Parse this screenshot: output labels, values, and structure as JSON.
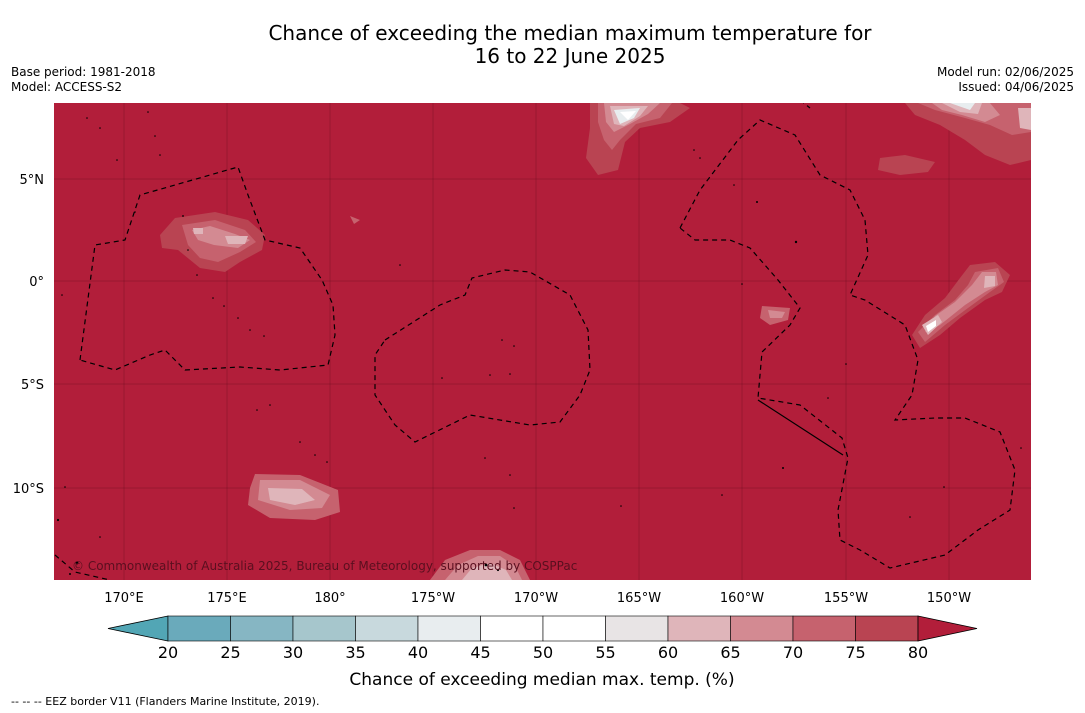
{
  "title": {
    "line1": "Chance of exceeding the median maximum temperature for",
    "line2": "16 to 22 June 2025"
  },
  "meta": {
    "base_period": "Base period: 1981-2018",
    "model": "Model: ACCESS-S2",
    "model_run": "Model run: 02/06/2025",
    "issued": "Issued: 04/06/2025"
  },
  "map": {
    "background_color": "#b21e3a",
    "copyright": "© Commonwealth of Australia 2025, Bureau of Meteorology, supported by COSPPac",
    "lat_labels": [
      "5°N",
      "0°",
      "5°S",
      "10°S"
    ],
    "lon_labels": [
      "170°E",
      "175°E",
      "180°",
      "175°W",
      "170°W",
      "165°W",
      "160°W",
      "155°W",
      "150°W"
    ]
  },
  "colorbar": {
    "ticks": [
      "20",
      "25",
      "30",
      "35",
      "40",
      "45",
      "50",
      "55",
      "60",
      "65",
      "70",
      "75",
      "80"
    ],
    "colors": [
      "#6aaabb",
      "#86b6c3",
      "#a6c6cc",
      "#c8d9dd",
      "#e8edef",
      "#ffffff",
      "#ffffff",
      "#e8e4e5",
      "#dfb5ba",
      "#d38a92",
      "#c6626e",
      "#b94452"
    ],
    "under_color": "#52a6b5",
    "over_color": "#b21e3a",
    "label": "Chance of exceeding median max. temp. (%)"
  },
  "footnote": "--  --  -- EEZ border V11 (Flanders Marine Institute, 2019)."
}
